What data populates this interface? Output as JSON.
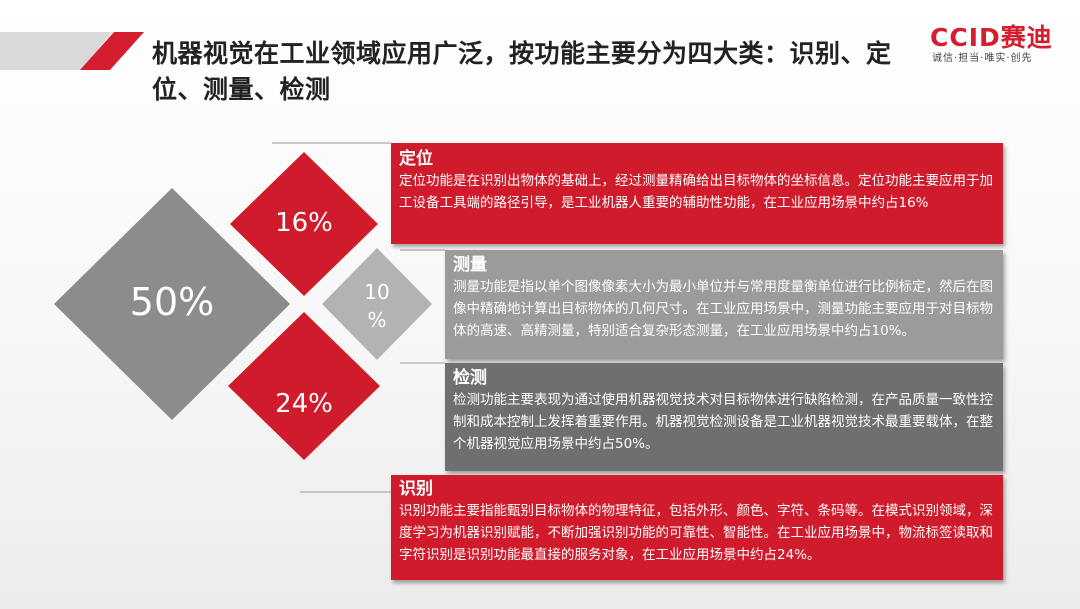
{
  "header": {
    "title": "机器视觉在工业领域应用广泛，按功能主要分为四大类：识别、定位、测量、检测"
  },
  "logo": {
    "brand": "CCID赛迪",
    "slogan": "诚信·担当·唯实·创先"
  },
  "diamonds": {
    "detect_pct": "50%",
    "position_pct": "16%",
    "measure_pct_top": "10",
    "measure_pct_bottom": "%",
    "identify_pct": "24%"
  },
  "panels": {
    "dingwei": {
      "title": "定位",
      "text": "定位功能是在识别出物体的基础上，经过测量精确给出目标物体的坐标信息。定位功能主要应用于加工设备工具端的路径引导，是工业机器人重要的辅助性功能，在工业应用场景中约占16%"
    },
    "celiang": {
      "title": "测量",
      "text": "测量功能是指以单个图像像素大小为最小单位并与常用度量衡单位进行比例标定，然后在图像中精确地计算出目标物体的几何尺寸。在工业应用场景中，测量功能主要应用于对目标物体的高速、高精测量，特别适合复杂形态测量，在工业应用场景中约占10%。"
    },
    "jiance": {
      "title": "检测",
      "text": "检测功能主要表现为通过使用机器视觉技术对目标物体进行缺陷检测，在产品质量一致性控制和成本控制上发挥着重要作用。机器视觉检测设备是工业机器视觉技术最重要载体，在整个机器视觉应用场景中约占50%。"
    },
    "shibie": {
      "title": "识别",
      "text": "识别功能主要指能甄别目标物体的物理特征，包括外形、颜色、字符、条码等。在模式识别领域，深度学习为机器识别赋能，不断加强识别功能的可靠性、智能性。在工业应用场景中，物流标签读取和字符识别是识别功能最直接的服务对象，在工业应用场景中约占24%。"
    }
  },
  "colors": {
    "accent_red": "#cf1b2b",
    "diamond_gray": "#8c8c8c",
    "light_gray": "#b3b3b3",
    "dark_gray": "#6f6f6f"
  }
}
